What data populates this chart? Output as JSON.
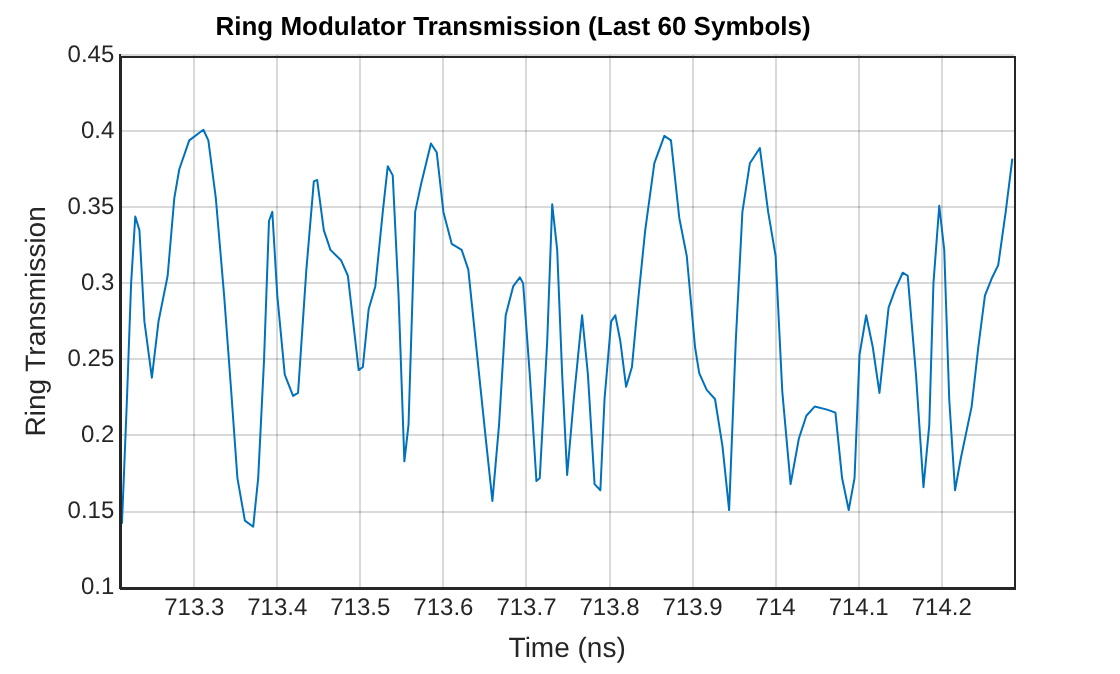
{
  "chart_data": {
    "type": "line",
    "title": "Ring Modulator Transmission (Last 60 Symbols)",
    "xlabel": "Time (ns)",
    "ylabel": "Ring Transmission",
    "xlim": [
      713.211,
      714.287
    ],
    "xticks": [
      713.3,
      713.4,
      713.5,
      713.6,
      713.7,
      713.8,
      713.9,
      714,
      714.1,
      714.2
    ],
    "ylim": [
      0.1,
      0.45
    ],
    "yticks": [
      0.1,
      0.15,
      0.2,
      0.25,
      0.3,
      0.35,
      0.4,
      0.45
    ],
    "grid": true,
    "legend": false,
    "marker": "none",
    "line_style": "solid",
    "series": [
      {
        "color": "#0072bd",
        "x": [
          713.213,
          713.219,
          713.224,
          713.229,
          713.234,
          713.24,
          713.249,
          713.257,
          713.268,
          713.276,
          713.282,
          713.294,
          713.311,
          713.317,
          713.326,
          713.336,
          713.344,
          713.352,
          713.361,
          713.371,
          713.377,
          713.384,
          713.39,
          713.394,
          713.4,
          713.409,
          713.419,
          713.425,
          713.435,
          713.444,
          713.448,
          713.456,
          713.464,
          713.477,
          713.485,
          713.498,
          713.503,
          713.51,
          713.518,
          713.527,
          713.533,
          713.539,
          713.546,
          713.553,
          713.558,
          713.566,
          713.573,
          713.585,
          713.592,
          713.6,
          713.61,
          713.622,
          713.63,
          713.643,
          713.651,
          713.659,
          713.667,
          713.675,
          713.684,
          713.692,
          713.696,
          713.704,
          713.712,
          713.716,
          713.725,
          713.731,
          713.737,
          713.743,
          713.749,
          713.757,
          713.767,
          713.774,
          713.782,
          713.789,
          713.794,
          713.802,
          713.807,
          713.813,
          713.82,
          713.827,
          713.835,
          713.843,
          713.854,
          713.866,
          713.874,
          713.884,
          713.893,
          713.903,
          713.908,
          713.917,
          713.927,
          713.936,
          713.944,
          713.952,
          713.96,
          713.969,
          713.981,
          713.991,
          714,
          714.008,
          714.018,
          714.028,
          714.037,
          714.047,
          714.062,
          714.072,
          714.08,
          714.088,
          714.095,
          714.101,
          714.109,
          714.117,
          714.125,
          714.136,
          714.144,
          714.153,
          714.159,
          714.169,
          714.178,
          714.185,
          714.19,
          714.197,
          714.203,
          714.209,
          714.216,
          714.223,
          714.236,
          714.244,
          714.252,
          714.26,
          714.268,
          714.277,
          714.285
        ],
        "values": [
          0.142,
          0.224,
          0.3,
          0.344,
          0.335,
          0.275,
          0.238,
          0.275,
          0.305,
          0.356,
          0.375,
          0.394,
          0.401,
          0.394,
          0.356,
          0.292,
          0.233,
          0.172,
          0.144,
          0.14,
          0.172,
          0.249,
          0.341,
          0.347,
          0.292,
          0.24,
          0.226,
          0.228,
          0.309,
          0.367,
          0.368,
          0.335,
          0.322,
          0.315,
          0.305,
          0.243,
          0.245,
          0.283,
          0.298,
          0.347,
          0.377,
          0.371,
          0.292,
          0.183,
          0.207,
          0.347,
          0.365,
          0.392,
          0.386,
          0.347,
          0.326,
          0.322,
          0.309,
          0.24,
          0.198,
          0.157,
          0.207,
          0.279,
          0.298,
          0.304,
          0.3,
          0.24,
          0.17,
          0.172,
          0.262,
          0.352,
          0.322,
          0.24,
          0.174,
          0.224,
          0.279,
          0.24,
          0.168,
          0.164,
          0.224,
          0.275,
          0.279,
          0.262,
          0.232,
          0.245,
          0.292,
          0.335,
          0.379,
          0.397,
          0.394,
          0.343,
          0.318,
          0.258,
          0.241,
          0.23,
          0.224,
          0.193,
          0.151,
          0.262,
          0.347,
          0.379,
          0.389,
          0.347,
          0.318,
          0.229,
          0.168,
          0.198,
          0.213,
          0.219,
          0.217,
          0.215,
          0.172,
          0.151,
          0.172,
          0.253,
          0.279,
          0.258,
          0.228,
          0.284,
          0.296,
          0.307,
          0.305,
          0.24,
          0.166,
          0.207,
          0.3,
          0.351,
          0.322,
          0.224,
          0.164,
          0.185,
          0.219,
          0.258,
          0.292,
          0.303,
          0.312,
          0.347,
          0.382
        ]
      }
    ]
  }
}
